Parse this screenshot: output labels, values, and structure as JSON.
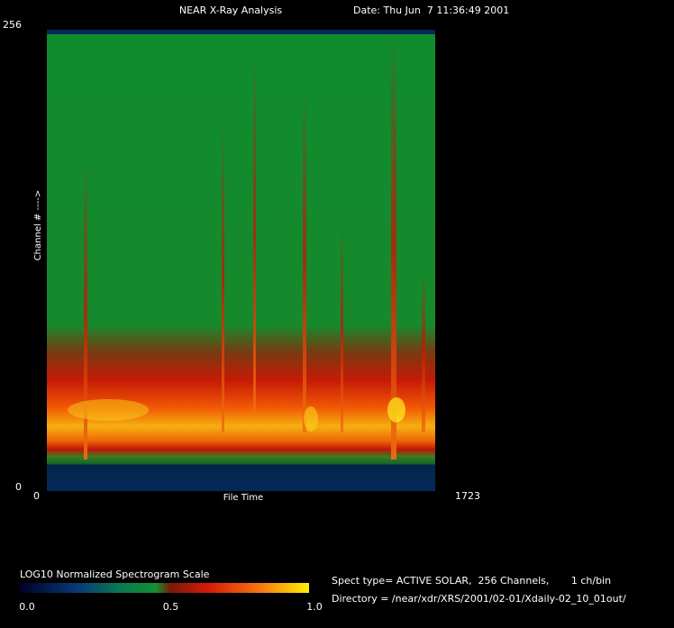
{
  "chart_data": {
    "type": "spectrogram",
    "title": "NEAR X-Ray Analysis",
    "date": "Date: Thu Jun  7 11:36:49 2001",
    "xlabel": "File Time",
    "ylabel": "Channel # ---->",
    "xlim": [
      0,
      1723
    ],
    "xticks": [
      0,
      1723
    ],
    "ylim": [
      0,
      256
    ],
    "yticks": [
      0,
      256
    ],
    "colorbar": {
      "label": "LOG10 Normalized Spectrogram Scale",
      "lim": [
        0,
        1
      ],
      "ticks": [
        {
          "value": 0,
          "label": "0.0"
        },
        {
          "value": 0.5,
          "label": "0.5"
        },
        {
          "value": 1,
          "label": "1.0"
        }
      ]
    },
    "info": [
      "Spect type= ACTIVE SOLAR,  256 Channels,       1 ch/bin",
      "Directory = /near/xdr/XRS/2001/02-01/Xdaily-02_10_01out/"
    ]
  }
}
